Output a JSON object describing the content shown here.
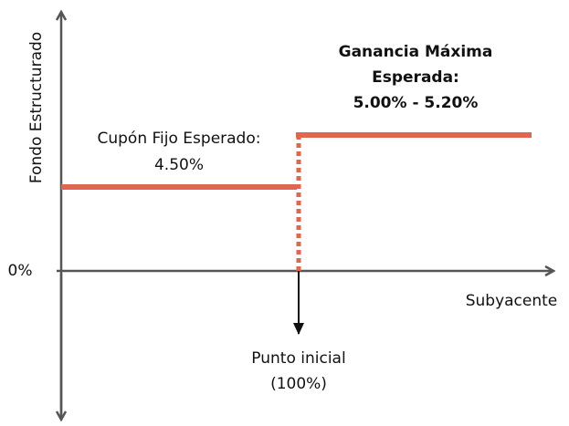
{
  "y_axis": {
    "label": "Fondo Estructurado",
    "origin_label": "0%"
  },
  "x_axis": {
    "label": "Subyacente",
    "start_label": [
      "Punto inicial",
      "(100%)"
    ]
  },
  "annotations": {
    "fixed_coupon": [
      "Cupón Fijo Esperado:",
      "4.50%"
    ],
    "max_gain": [
      "Ganancia Máxima",
      "Esperada:",
      "5.00% - 5.20%"
    ]
  }
}
